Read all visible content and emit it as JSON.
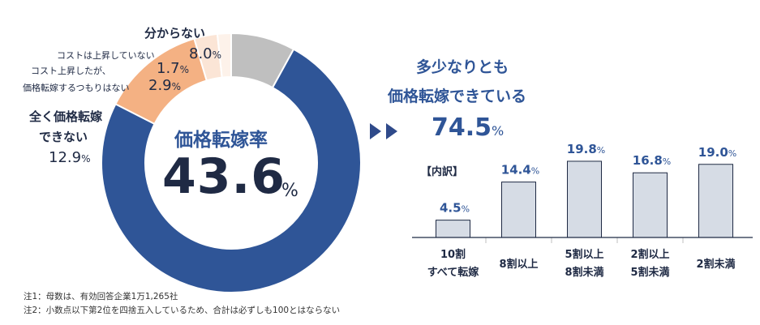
{
  "chart_data": [
    {
      "type": "pie",
      "title": "価格転嫁率",
      "center_value": "43.6",
      "center_unit": "%",
      "slices": [
        {
          "label_lines": [
            "分からない"
          ],
          "value": 8.0,
          "display": "8.0%",
          "color": "#bfbfbf"
        },
        {
          "label_lines": [
            "多少なりとも",
            "価格転嫁できている"
          ],
          "value": 74.5,
          "display": "74.5%",
          "color": "#2f5597"
        },
        {
          "label_lines": [
            "全く価格転嫁",
            "できない"
          ],
          "value": 12.9,
          "display": "12.9%",
          "color": "#f4b183"
        },
        {
          "label_lines": [
            "コスト上昇したが、",
            "価格転嫁するつもりはない"
          ],
          "value": 2.9,
          "display": "2.9%",
          "color": "#fbe5d6"
        },
        {
          "label_lines": [
            "コストは上昇していない"
          ],
          "value": 1.7,
          "display": "1.7%",
          "color": "#fdf2ea"
        }
      ]
    },
    {
      "type": "bar",
      "title": "【内訳】",
      "categories": [
        [
          "10割",
          "すべて転嫁"
        ],
        [
          "8割以上"
        ],
        [
          "5割以上",
          "8割未満"
        ],
        [
          "2割以上",
          "5割未満"
        ],
        [
          "2割未満"
        ]
      ],
      "values": [
        4.5,
        14.4,
        19.8,
        16.8,
        19.0
      ],
      "value_labels": [
        "4.5",
        "14.4",
        "19.8",
        "16.8",
        "19.0"
      ],
      "unit": "%",
      "ylim": [
        0,
        20
      ],
      "bar_color": "#d6dce5"
    }
  ],
  "labels": {
    "unknown": "分からない",
    "unknown_val": "8.0",
    "no_rise": "コストは上昇していない",
    "no_rise_val": "1.7",
    "no_intent_1": "コスト上昇したが、",
    "no_intent_2": "価格転嫁するつもりはない",
    "no_intent_val": "2.9",
    "cannot_1": "全く価格転嫁",
    "cannot_2": "できない",
    "cannot_val": "12.9",
    "pct": "%"
  },
  "center": {
    "title": "価格転嫁率",
    "value": "43.6",
    "unit": "%"
  },
  "right": {
    "head_1": "多少なりとも",
    "head_2": "価格転嫁できている",
    "value": "74.5",
    "unit": "%",
    "breakdown_title": "【内訳】"
  },
  "notes": [
    "注1：母数は、有効回答企業1万1,265社",
    "注2：小数点以下第2位を四捨五入しているため、合計は必ずしも100とはならない"
  ]
}
